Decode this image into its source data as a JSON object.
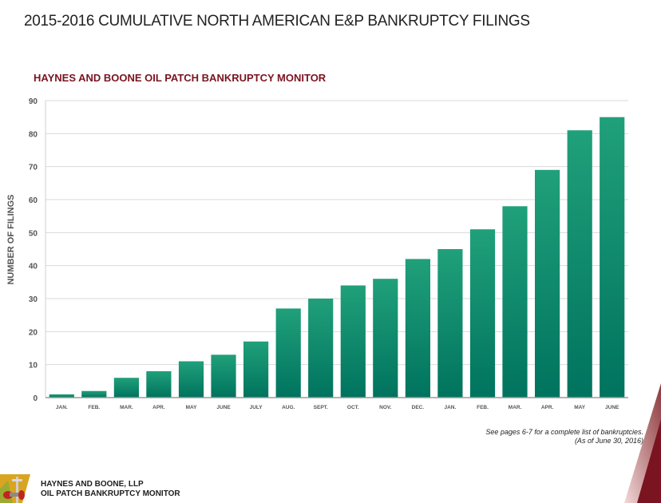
{
  "page": {
    "title": "2015-2016 CUMULATIVE NORTH AMERICAN E&P BANKRUPTCY FILINGS",
    "subtitle": "HAYNES AND BOONE OIL PATCH BANKRUPTCY MONITOR",
    "footnote_line1": "See pages 6-7 for a complete list of bankruptcies.",
    "footnote_line2": "(As of June 30, 2016)",
    "footer_line1": "HAYNES AND BOONE, LLP",
    "footer_line2": "OIL PATCH BANKRUPTCY MONITOR",
    "logo_icon": "oil-valve-logo-icon"
  },
  "colors": {
    "bar_top": "#20a07a",
    "bar_bottom": "#00735e",
    "subtitle": "#7a1420",
    "gridline": "#d9d9d9",
    "accent_maroon": "#7a1420"
  },
  "chart_data": {
    "type": "bar",
    "title": "HAYNES AND BOONE OIL PATCH BANKRUPTCY MONITOR",
    "xlabel": "",
    "ylabel": "NUMBER OF FILINGS",
    "categories": [
      "JAN.",
      "FEB.",
      "MAR.",
      "APR.",
      "MAY",
      "JUNE",
      "JULY",
      "AUG.",
      "SEPT.",
      "OCT.",
      "NOV.",
      "DEC.",
      "JAN.",
      "FEB.",
      "MAR.",
      "APR.",
      "MAY",
      "JUNE"
    ],
    "values": [
      1,
      2,
      6,
      8,
      11,
      13,
      17,
      27,
      30,
      34,
      36,
      42,
      45,
      51,
      58,
      69,
      81,
      85
    ],
    "ylim": [
      0,
      90
    ],
    "yticks": [
      0,
      10,
      20,
      30,
      40,
      50,
      60,
      70,
      80,
      90
    ],
    "grid": true,
    "legend": "none"
  }
}
